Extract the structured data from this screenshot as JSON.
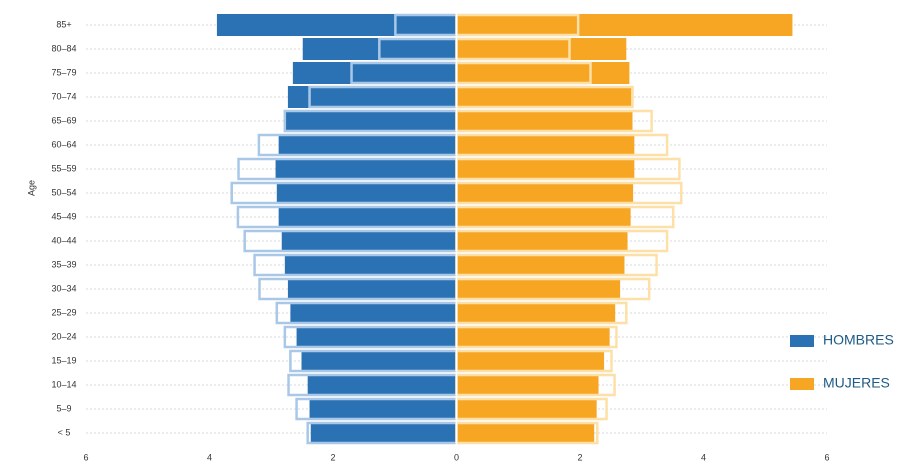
{
  "chart_data": {
    "type": "pyramid",
    "y_label": "Age",
    "categories": [
      "85+",
      "80–84",
      "75–79",
      "70–74",
      "65–69",
      "60–64",
      "55–59",
      "50–54",
      "45–49",
      "40–44",
      "35–39",
      "30–34",
      "25–29",
      "20–24",
      "15–19",
      "10–14",
      "5–9",
      "< 5"
    ],
    "series": [
      {
        "name": "HOMBRES",
        "side": "left",
        "color": "#2b72b5",
        "values": [
          3.88,
          2.49,
          2.65,
          2.73,
          2.78,
          2.88,
          2.93,
          2.91,
          2.88,
          2.83,
          2.78,
          2.73,
          2.69,
          2.59,
          2.51,
          2.41,
          2.38,
          2.36
        ]
      },
      {
        "name": "MUJERES",
        "side": "right",
        "color": "#f6a623",
        "values": [
          5.44,
          2.75,
          2.8,
          2.83,
          2.85,
          2.88,
          2.88,
          2.86,
          2.82,
          2.77,
          2.72,
          2.65,
          2.57,
          2.48,
          2.39,
          2.3,
          2.27,
          2.23
        ]
      }
    ],
    "outline_series": [
      {
        "side": "left",
        "color": "#a9c8e8",
        "values": [
          0.99,
          1.25,
          1.7,
          2.38,
          2.78,
          3.2,
          3.53,
          3.64,
          3.54,
          3.43,
          3.27,
          3.19,
          2.91,
          2.78,
          2.69,
          2.72,
          2.59,
          2.41
        ]
      },
      {
        "side": "right",
        "color": "#fde0a8",
        "values": [
          1.97,
          1.83,
          2.17,
          2.85,
          3.16,
          3.41,
          3.61,
          3.64,
          3.51,
          3.41,
          3.24,
          3.12,
          2.75,
          2.59,
          2.51,
          2.56,
          2.43,
          2.28
        ]
      }
    ],
    "xlim": [
      -6,
      6
    ],
    "xticks": [
      {
        "value": -6,
        "label": "6"
      },
      {
        "value": -4,
        "label": "4"
      },
      {
        "value": -2,
        "label": "2"
      },
      0,
      2,
      4,
      6
    ]
  }
}
